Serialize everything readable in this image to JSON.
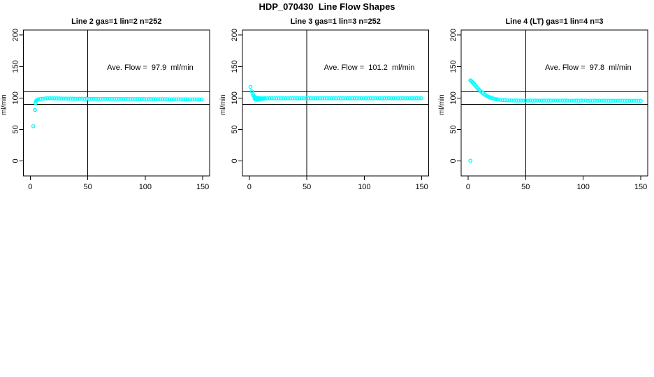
{
  "chart_data": {
    "type": "scatter",
    "title": "HDP_070430  Line Flow Shapes",
    "point_color": "#00FFFF",
    "axis_color": "#000000",
    "layout_hints": {
      "grid": false,
      "legend": "none",
      "marker": "open-circle",
      "reference_lines_y": [
        110,
        90
      ],
      "reference_line_x": 50
    },
    "panels": [
      {
        "title": "Line 2 gas=1 lin=2 n=252",
        "annotation": "Ave. Flow =  97.9  ml/min",
        "ave_flow": 97.9,
        "n": 252,
        "ylabel": "ml/min",
        "xlim": [
          -6,
          156
        ],
        "ylim": [
          -24,
          208
        ],
        "xticks": [
          0,
          50,
          100,
          150
        ],
        "yticks": [
          0,
          50,
          100,
          150,
          200
        ],
        "vline_x": 50,
        "hlines": [
          110,
          90
        ],
        "points": [
          [
            2.6,
            55
          ],
          [
            4,
            81
          ],
          [
            4.6,
            92
          ],
          [
            5,
            94.5
          ],
          [
            5.6,
            96.2
          ],
          [
            6.2,
            97.3
          ],
          [
            7,
            97.9
          ],
          [
            9,
            98.5
          ],
          [
            11,
            98.9
          ],
          [
            13,
            99.2
          ],
          [
            15,
            99.4
          ],
          [
            17,
            99.5
          ],
          [
            19,
            99.4
          ],
          [
            21,
            99.4
          ],
          [
            23,
            99.3
          ],
          [
            25,
            99.2
          ],
          [
            27,
            99.1
          ],
          [
            29,
            99.0
          ],
          [
            31,
            99.0
          ],
          [
            33,
            98.9
          ],
          [
            35,
            99.0
          ],
          [
            37,
            98.8
          ],
          [
            39,
            98.9
          ],
          [
            41,
            98.7
          ],
          [
            43,
            98.8
          ],
          [
            45,
            98.8
          ],
          [
            47,
            98.6
          ],
          [
            49,
            98.7
          ],
          [
            51,
            98.6
          ],
          [
            53,
            98.6
          ],
          [
            55,
            98.7
          ],
          [
            57,
            98.5
          ],
          [
            59,
            98.6
          ],
          [
            61,
            98.4
          ],
          [
            63,
            98.5
          ],
          [
            65,
            98.6
          ],
          [
            67,
            98.4
          ],
          [
            69,
            98.5
          ],
          [
            71,
            98.3
          ],
          [
            73,
            98.4
          ],
          [
            75,
            98.5
          ],
          [
            77,
            98.3
          ],
          [
            79,
            98.4
          ],
          [
            81,
            98.2
          ],
          [
            83,
            98.3
          ],
          [
            85,
            98.4
          ],
          [
            87,
            98.2
          ],
          [
            89,
            98.3
          ],
          [
            91,
            98.1
          ],
          [
            93,
            98.2
          ],
          [
            95,
            98.3
          ],
          [
            97,
            98.1
          ],
          [
            99,
            98.2
          ],
          [
            101,
            98.0
          ],
          [
            103,
            98.1
          ],
          [
            105,
            98.2
          ],
          [
            107,
            98.0
          ],
          [
            109,
            98.1
          ],
          [
            111,
            97.9
          ],
          [
            113,
            98.0
          ],
          [
            115,
            98.1
          ],
          [
            117,
            97.9
          ],
          [
            119,
            98.0
          ],
          [
            121,
            97.8
          ],
          [
            123,
            97.9
          ],
          [
            125,
            98.0
          ],
          [
            127,
            97.8
          ],
          [
            129,
            97.9
          ],
          [
            131,
            97.7
          ],
          [
            133,
            97.8
          ],
          [
            135,
            97.9
          ],
          [
            137,
            97.7
          ],
          [
            139,
            97.8
          ],
          [
            141,
            97.6
          ],
          [
            143,
            97.7
          ],
          [
            145,
            97.8
          ],
          [
            147,
            97.6
          ],
          [
            149,
            97.7
          ]
        ]
      },
      {
        "title": "Line 3 gas=1 lin=3 n=252",
        "annotation": "Ave. Flow =  101.2  ml/min",
        "ave_flow": 101.2,
        "n": 252,
        "ylabel": "ml/min",
        "xlim": [
          -6,
          156
        ],
        "ylim": [
          -24,
          208
        ],
        "xticks": [
          0,
          50,
          100,
          150
        ],
        "yticks": [
          0,
          50,
          100,
          150,
          200
        ],
        "vline_x": 50,
        "hlines": [
          110,
          90
        ],
        "points": [
          [
            1,
            117.5
          ],
          [
            2.2,
            110.5
          ],
          [
            3,
            106.2
          ],
          [
            3.6,
            103.9
          ],
          [
            4.2,
            102.4
          ],
          [
            4.8,
            101.4
          ],
          [
            5.4,
            100.7
          ],
          [
            6.2,
            100.2
          ],
          [
            7,
            99.9
          ],
          [
            8,
            99.7
          ],
          [
            4.6,
            98.5
          ],
          [
            5.2,
            97.9
          ],
          [
            6,
            97.4
          ],
          [
            6.8,
            97.1
          ],
          [
            7.8,
            97.3
          ],
          [
            8.8,
            97.7
          ],
          [
            9.8,
            98.1
          ],
          [
            10.8,
            98.5
          ],
          [
            11.8,
            98.9
          ],
          [
            12.8,
            99.2
          ],
          [
            9.5,
            99.6
          ],
          [
            11.5,
            99.4
          ],
          [
            13.5,
            99.5
          ],
          [
            15.5,
            99.3
          ],
          [
            17.5,
            99.6
          ],
          [
            19.5,
            99.4
          ],
          [
            21.5,
            99.5
          ],
          [
            23.5,
            99.3
          ],
          [
            25.5,
            99.5
          ],
          [
            27.5,
            99.4
          ],
          [
            29.5,
            99.6
          ],
          [
            31.5,
            99.3
          ],
          [
            33.5,
            99.5
          ],
          [
            35.5,
            99.4
          ],
          [
            37.5,
            99.5
          ],
          [
            39.5,
            99.3
          ],
          [
            41.5,
            99.5
          ],
          [
            43.5,
            99.4
          ],
          [
            45.5,
            99.6
          ],
          [
            47.5,
            99.3
          ],
          [
            49.5,
            99.5
          ],
          [
            51.5,
            99.4
          ],
          [
            53.5,
            99.5
          ],
          [
            55.5,
            99.3
          ],
          [
            57.5,
            99.5
          ],
          [
            59.5,
            99.4
          ],
          [
            61.5,
            99.6
          ],
          [
            63.5,
            99.3
          ],
          [
            65.5,
            99.5
          ],
          [
            67.5,
            99.4
          ],
          [
            69.5,
            99.5
          ],
          [
            71.5,
            99.3
          ],
          [
            73.5,
            99.5
          ],
          [
            75.5,
            99.4
          ],
          [
            77.5,
            99.6
          ],
          [
            79.5,
            99.3
          ],
          [
            81.5,
            99.5
          ],
          [
            83.5,
            99.4
          ],
          [
            85.5,
            99.5
          ],
          [
            87.5,
            99.3
          ],
          [
            89.5,
            99.5
          ],
          [
            91.5,
            99.4
          ],
          [
            93.5,
            99.6
          ],
          [
            95.5,
            99.3
          ],
          [
            97.5,
            99.5
          ],
          [
            99.5,
            99.4
          ],
          [
            101.5,
            99.5
          ],
          [
            103.5,
            99.3
          ],
          [
            105.5,
            99.5
          ],
          [
            107.5,
            99.4
          ],
          [
            109.5,
            99.6
          ],
          [
            111.5,
            99.3
          ],
          [
            113.5,
            99.5
          ],
          [
            115.5,
            99.4
          ],
          [
            117.5,
            99.5
          ],
          [
            119.5,
            99.3
          ],
          [
            121.5,
            99.5
          ],
          [
            123.5,
            99.4
          ],
          [
            125.5,
            99.6
          ],
          [
            127.5,
            99.3
          ],
          [
            129.5,
            99.5
          ],
          [
            131.5,
            99.4
          ],
          [
            133.5,
            99.5
          ],
          [
            135.5,
            99.3
          ],
          [
            137.5,
            99.5
          ],
          [
            139.5,
            99.4
          ],
          [
            141.5,
            99.6
          ],
          [
            143.5,
            99.3
          ],
          [
            145.5,
            99.5
          ],
          [
            147.5,
            99.4
          ],
          [
            149.5,
            99.5
          ]
        ]
      },
      {
        "title": "Line 4 (LT) gas=1 lin=4 n=3",
        "annotation": "Ave. Flow =  97.8  ml/min",
        "ave_flow": 97.8,
        "n": 3,
        "ylabel": "ml/min",
        "xlim": [
          -6,
          156
        ],
        "ylim": [
          -24,
          208
        ],
        "xticks": [
          0,
          50,
          100,
          150
        ],
        "yticks": [
          0,
          50,
          100,
          150,
          200
        ],
        "vline_x": 50,
        "hlines": [
          110,
          90
        ],
        "points": [
          [
            2,
            0
          ],
          [
            2,
            128
          ],
          [
            2.8,
            127
          ],
          [
            3.6,
            125.6
          ],
          [
            4.4,
            124
          ],
          [
            5.2,
            122.3
          ],
          [
            6,
            120.5
          ],
          [
            6.8,
            118.8
          ],
          [
            7.6,
            117
          ],
          [
            8.4,
            115.3
          ],
          [
            9.2,
            113.7
          ],
          [
            10,
            112.2
          ],
          [
            11,
            110.4
          ],
          [
            12,
            108.8
          ],
          [
            13,
            107.3
          ],
          [
            14,
            105.9
          ],
          [
            15,
            104.7
          ],
          [
            16,
            103.6
          ],
          [
            17,
            102.6
          ],
          [
            18,
            101.7
          ],
          [
            19,
            100.9
          ],
          [
            20,
            100.2
          ],
          [
            21.5,
            99.3
          ],
          [
            23,
            98.6
          ],
          [
            24.5,
            98
          ],
          [
            26,
            97.5
          ],
          [
            28,
            97
          ],
          [
            30,
            96.7
          ],
          [
            32,
            96.4
          ],
          [
            34,
            96.2
          ],
          [
            36,
            96.1
          ],
          [
            38,
            96
          ],
          [
            40,
            95.9
          ],
          [
            42,
            96
          ],
          [
            44,
            95.8
          ],
          [
            46,
            95.9
          ],
          [
            48,
            95.7
          ],
          [
            50,
            95.9
          ],
          [
            52,
            95.8
          ],
          [
            54,
            96
          ],
          [
            56,
            95.7
          ],
          [
            58,
            95.9
          ],
          [
            60,
            95.8
          ],
          [
            62,
            95.9
          ],
          [
            64,
            95.7
          ],
          [
            66,
            95.9
          ],
          [
            68,
            95.8
          ],
          [
            70,
            96
          ],
          [
            72,
            95.7
          ],
          [
            74,
            95.9
          ],
          [
            76,
            95.8
          ],
          [
            78,
            95.9
          ],
          [
            80,
            95.7
          ],
          [
            82,
            95.9
          ],
          [
            84,
            95.8
          ],
          [
            86,
            95.9
          ],
          [
            88,
            95.6
          ],
          [
            90,
            95.8
          ],
          [
            92,
            95.7
          ],
          [
            94,
            95.9
          ],
          [
            96,
            95.6
          ],
          [
            98,
            95.8
          ],
          [
            100,
            95.7
          ],
          [
            102,
            95.9
          ],
          [
            104,
            95.6
          ],
          [
            106,
            95.8
          ],
          [
            108,
            95.7
          ],
          [
            110,
            95.8
          ],
          [
            112,
            95.6
          ],
          [
            114,
            95.8
          ],
          [
            116,
            95.7
          ],
          [
            118,
            95.8
          ],
          [
            120,
            95.5
          ],
          [
            122,
            95.7
          ],
          [
            124,
            95.6
          ],
          [
            126,
            95.8
          ],
          [
            128,
            95.5
          ],
          [
            130,
            95.7
          ],
          [
            132,
            95.6
          ],
          [
            134,
            95.8
          ],
          [
            136,
            95.5
          ],
          [
            138,
            95.7
          ],
          [
            140,
            95.6
          ],
          [
            142,
            95.7
          ],
          [
            144,
            95.5
          ],
          [
            146,
            95.7
          ],
          [
            148,
            95.6
          ],
          [
            150,
            95.5
          ]
        ]
      }
    ]
  }
}
